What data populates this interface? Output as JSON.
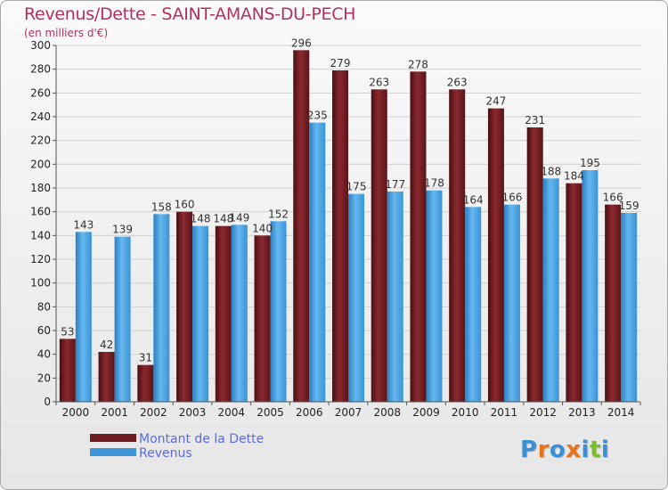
{
  "title": "Revenus/Dette - SAINT-AMANS-DU-PECH",
  "subtitle": "(en milliers d'€)",
  "colors": {
    "dette": "#7a1c22",
    "revenus": "#4aa3e0",
    "title": "#b03060",
    "legend_text": "#5a6ce0"
  },
  "legend": [
    {
      "label": "Montant de la Dette",
      "color": "#6e1a1f"
    },
    {
      "label": "Revenus",
      "color": "#3d95d6"
    }
  ],
  "logo": {
    "letters": [
      "P",
      "r",
      "o",
      "x",
      "i",
      "t",
      "i"
    ],
    "colors": [
      "#3a8fd6",
      "#e8731a",
      "#3a8fd6",
      "#e8731a",
      "#3a8fd6",
      "#7bbf2a",
      "#3a8fd6"
    ]
  },
  "chart_data": {
    "type": "bar",
    "title": "Revenus/Dette - SAINT-AMANS-DU-PECH",
    "subtitle": "(en milliers d'€)",
    "categories": [
      "2000",
      "2001",
      "2002",
      "2003",
      "2004",
      "2005",
      "2006",
      "2007",
      "2008",
      "2009",
      "2010",
      "2011",
      "2012",
      "2013",
      "2014"
    ],
    "series": [
      {
        "name": "Montant de la Dette",
        "values": [
          53,
          42,
          31,
          160,
          148,
          140,
          296,
          279,
          263,
          278,
          263,
          247,
          231,
          184,
          166
        ]
      },
      {
        "name": "Revenus",
        "values": [
          143,
          139,
          158,
          148,
          149,
          152,
          235,
          175,
          177,
          178,
          164,
          166,
          188,
          195,
          159
        ]
      }
    ],
    "ylim": [
      0,
      300
    ],
    "yticks": [
      0,
      20,
      40,
      60,
      80,
      100,
      120,
      140,
      160,
      180,
      200,
      220,
      240,
      260,
      280,
      300
    ],
    "grid": true,
    "legend_position": "bottom-left"
  }
}
